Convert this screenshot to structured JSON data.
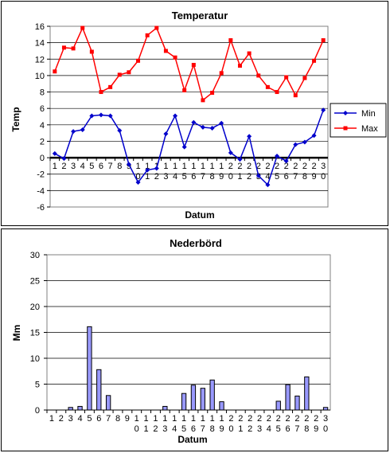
{
  "chart_data": [
    {
      "type": "line",
      "title": "Temperatur",
      "xlabel": "Datum",
      "ylabel": "Temp",
      "ylim": [
        -6,
        16
      ],
      "yticks": [
        -6,
        -4,
        -2,
        0,
        2,
        4,
        6,
        8,
        10,
        12,
        14,
        16
      ],
      "x": [
        "1",
        "2",
        "3",
        "4",
        "5",
        "6",
        "7",
        "8",
        "9",
        "10",
        "11",
        "12",
        "13",
        "14",
        "15",
        "16",
        "17",
        "18",
        "19",
        "20",
        "21",
        "22",
        "23",
        "24",
        "25",
        "26",
        "27",
        "28",
        "29",
        "30"
      ],
      "grid": true,
      "legend": "right",
      "series": [
        {
          "name": "Min",
          "color": "#0000cc",
          "values": [
            0.5,
            -0.1,
            3.2,
            3.4,
            5.1,
            5.2,
            5.1,
            3.3,
            -0.8,
            -3.0,
            -1.5,
            -1.3,
            2.9,
            5.1,
            1.3,
            4.3,
            3.7,
            3.6,
            4.2,
            0.6,
            -0.2,
            2.6,
            -2.2,
            -3.3,
            0.2,
            -0.4,
            1.6,
            1.9,
            2.7,
            5.8
          ]
        },
        {
          "name": "Max",
          "color": "#ff0000",
          "values": [
            10.5,
            13.4,
            13.3,
            15.8,
            12.9,
            8.0,
            8.6,
            10.1,
            10.4,
            11.8,
            14.9,
            15.8,
            13.0,
            12.2,
            8.2,
            11.3,
            7.0,
            7.9,
            10.3,
            14.3,
            11.2,
            12.7,
            10.0,
            8.6,
            8.0,
            9.8,
            7.6,
            9.7,
            11.8,
            14.3
          ]
        }
      ]
    },
    {
      "type": "bar",
      "title": "Nederbörd",
      "xlabel": "Datum",
      "ylabel": "Mm",
      "ylim": [
        0,
        30
      ],
      "yticks": [
        0,
        5,
        10,
        15,
        20,
        25,
        30
      ],
      "grid": true,
      "color": "#9999ff",
      "categories": [
        "1",
        "2",
        "3",
        "4",
        "5",
        "6",
        "7",
        "8",
        "9",
        "10",
        "11",
        "12",
        "13",
        "14",
        "15",
        "16",
        "17",
        "18",
        "19",
        "20",
        "21",
        "22",
        "23",
        "24",
        "25",
        "26",
        "27",
        "28",
        "29",
        "30"
      ],
      "values": [
        0,
        0,
        0.5,
        0.7,
        16.1,
        7.8,
        2.8,
        0,
        0,
        0,
        0,
        0,
        0.7,
        0,
        3.2,
        4.8,
        4.2,
        5.8,
        1.6,
        0,
        0,
        0,
        0,
        0,
        1.7,
        4.9,
        2.7,
        6.4,
        0,
        0.5
      ]
    }
  ]
}
